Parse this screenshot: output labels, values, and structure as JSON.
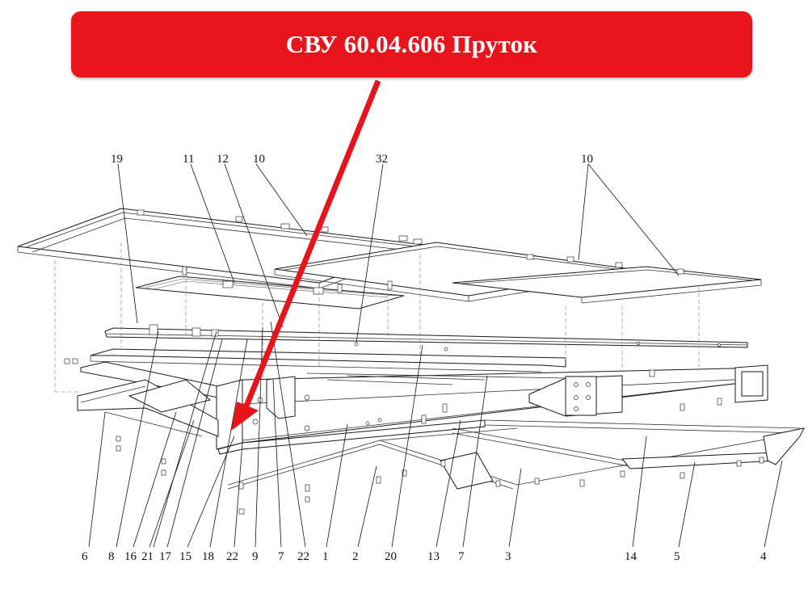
{
  "banner": {
    "title": "СВУ 60.04.606 Пруток",
    "color": "#e8141c"
  },
  "arrow": {
    "color": "#e8141c"
  },
  "callouts_top": [
    "19",
    "11",
    "12",
    "10",
    "32",
    "10"
  ],
  "callouts_bottom": [
    "6",
    "8",
    "16",
    "21",
    "17",
    "15",
    "18",
    "22",
    "9",
    "7",
    "22",
    "1",
    "2",
    "20",
    "13",
    "7",
    "3",
    "14",
    "5",
    "4"
  ]
}
